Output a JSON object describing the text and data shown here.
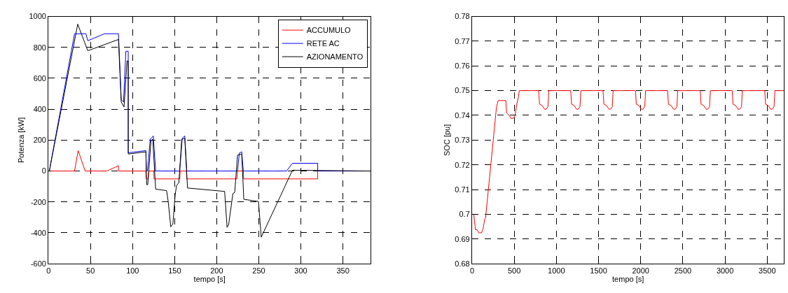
{
  "chart_data": [
    {
      "type": "line",
      "xlabel": "tempo [s]",
      "ylabel": "Potenza [kW]",
      "xlim": [
        0,
        383
      ],
      "ylim": [
        -600,
        1000
      ],
      "xticks": [
        0,
        50,
        100,
        150,
        200,
        250,
        300,
        350
      ],
      "yticks": [
        -600,
        -400,
        -200,
        0,
        200,
        400,
        600,
        800,
        1000
      ],
      "grid": true,
      "legend": "top right",
      "marker": "none",
      "line_style": "solid",
      "series": [
        {
          "name": "ACCUMULO",
          "color": "#ff0000",
          "x": [
            0,
            31,
            35.3,
            43.6,
            69.3,
            83.2,
            83.2,
            115.5,
            116.3,
            118.6,
            119.2,
            125.2,
            125.5,
            156,
            156.5,
            163.9,
            164.4,
            224,
            224.7,
            231.6,
            232,
            320,
            320,
            383
          ],
          "values": [
            0,
            0,
            132,
            0,
            0,
            34,
            0,
            0,
            -51,
            -51,
            0,
            0,
            -51,
            -51,
            0,
            0,
            -51,
            -51,
            0,
            0,
            -51,
            -51,
            0,
            0
          ]
        },
        {
          "name": "RETE AC",
          "color": "#0000ff",
          "x": [
            0,
            1,
            31,
            44.5,
            46.7,
            66.6,
            83.2,
            86.5,
            89.2,
            92,
            94.8,
            94.8,
            115.8,
            116.3,
            117.6,
            121,
            124.6,
            127.4,
            156,
            159,
            162,
            164.4,
            224.7,
            226.9,
            229.7,
            231.6,
            283,
            290,
            320,
            320,
            383
          ],
          "values": [
            0,
            0,
            888,
            888,
            843,
            888,
            888,
            461,
            446,
            775,
            775,
            118,
            132,
            0,
            0,
            205,
            227,
            0,
            0,
            212,
            227,
            0,
            0,
            117,
            124,
            0,
            0,
            50,
            50,
            0,
            0
          ]
        },
        {
          "name": "AZIONAMENTO",
          "color": "#000000",
          "x": [
            0,
            1,
            34.8,
            46.7,
            83.2,
            86.5,
            89.8,
            93.4,
            94.8,
            94.8,
            115.8,
            116.7,
            118,
            121.9,
            124,
            127.4,
            140.4,
            142.3,
            145.4,
            147.9,
            150.6,
            152.2,
            155,
            158.4,
            162,
            165.3,
            209.4,
            212.3,
            214.2,
            219.2,
            221.4,
            224.7,
            229.7,
            232.2,
            249.6,
            252.9,
            290,
            383
          ],
          "values": [
            0,
            0,
            950,
            778,
            851,
            446,
            414,
            712,
            712,
            110,
            124,
            -88,
            -88,
            197,
            205,
            -117,
            -127,
            -197,
            -361,
            -343,
            -154,
            -95,
            -75,
            205,
            212,
            -110,
            -132,
            -365,
            -346,
            -146,
            -139,
            102,
            110,
            -183,
            -197,
            -428,
            5,
            0
          ]
        }
      ]
    },
    {
      "type": "line",
      "xlabel": "tempo [s]",
      "ylabel": "SOC [pu]",
      "xlim": [
        0,
        3700
      ],
      "ylim": [
        0.68,
        0.78
      ],
      "xticks": [
        0,
        500,
        1000,
        1500,
        2000,
        2500,
        3000,
        3500
      ],
      "yticks": [
        0.68,
        0.69,
        0.7,
        0.71,
        0.72,
        0.73,
        0.74,
        0.75,
        0.76,
        0.77,
        0.78
      ],
      "grid": true,
      "marker": "none",
      "line_style": "solid",
      "series": [
        {
          "color": "#ff0000",
          "x": [
            0,
            20,
            40,
            60,
            80,
            110,
            130,
            150,
            160,
            290,
            310,
            400,
            410,
            440,
            460,
            490,
            510,
            530,
            550,
            560,
            790,
            800,
            830,
            860,
            880,
            900,
            910,
            1170,
            1180,
            1210,
            1240,
            1260,
            1280,
            1290,
            1553,
            1563,
            1593,
            1623,
            1643,
            1663,
            1673,
            1938,
            1948,
            1978,
            2008,
            2028,
            2048,
            2058,
            2319,
            2329,
            2359,
            2389,
            2409,
            2429,
            2439,
            2706,
            2716,
            2746,
            2776,
            2796,
            2816,
            2826,
            3085,
            3095,
            3125,
            3155,
            3175,
            3195,
            3205,
            3471,
            3481,
            3511,
            3541,
            3561,
            3581,
            3591,
            3700
          ],
          "values": [
            0.7,
            0.7,
            0.6938,
            0.6938,
            0.6925,
            0.6925,
            0.694,
            0.698,
            0.6985,
            0.7435,
            0.746,
            0.746,
            0.741,
            0.74,
            0.7388,
            0.7388,
            0.74,
            0.7445,
            0.7475,
            0.75,
            0.75,
            0.7445,
            0.744,
            0.7425,
            0.7425,
            0.7435,
            0.75,
            0.75,
            0.7445,
            0.744,
            0.7425,
            0.7425,
            0.7435,
            0.75,
            0.75,
            0.7445,
            0.744,
            0.7425,
            0.7425,
            0.7435,
            0.75,
            0.75,
            0.7445,
            0.744,
            0.7425,
            0.7425,
            0.7435,
            0.75,
            0.75,
            0.7445,
            0.744,
            0.7425,
            0.7425,
            0.7435,
            0.75,
            0.75,
            0.7445,
            0.744,
            0.7425,
            0.7425,
            0.7435,
            0.75,
            0.75,
            0.7445,
            0.744,
            0.7425,
            0.7425,
            0.7435,
            0.75,
            0.75,
            0.7445,
            0.744,
            0.7425,
            0.7425,
            0.7435,
            0.75,
            0.75
          ]
        }
      ]
    }
  ]
}
